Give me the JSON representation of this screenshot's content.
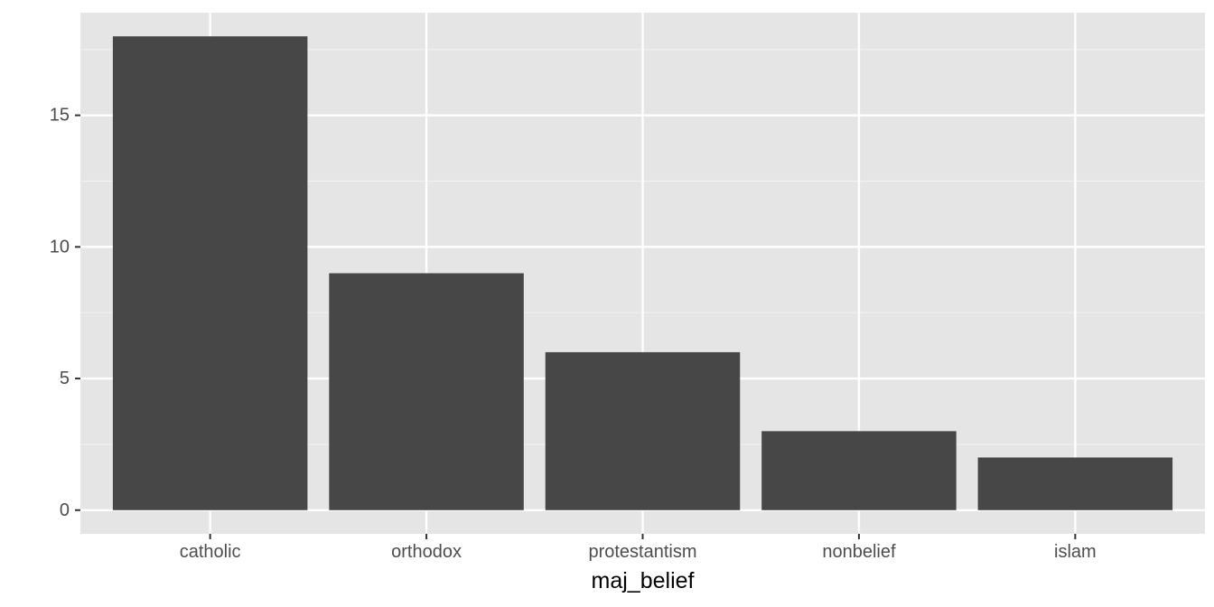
{
  "chart_data": {
    "type": "bar",
    "title": "",
    "xlabel": "maj_belief",
    "ylabel": "",
    "categories": [
      "catholic",
      "orthodox",
      "protestantism",
      "nonbelief",
      "islam"
    ],
    "values": [
      18,
      9,
      6,
      3,
      2
    ],
    "ylim": [
      -0.9,
      18.9
    ],
    "yticks": [
      0,
      5,
      10,
      15
    ],
    "ytick_labels": [
      "0",
      "5",
      "10",
      "15"
    ],
    "grid": true,
    "legend": "none",
    "colors": {
      "bar": "#474747",
      "panel_background": "#e5e5e5",
      "grid_major": "#ffffff",
      "grid_minor": "#f2f2f2",
      "tick_text": "#4d4d4d",
      "tick_mark": "#333333",
      "axis_title": "#000000"
    }
  }
}
